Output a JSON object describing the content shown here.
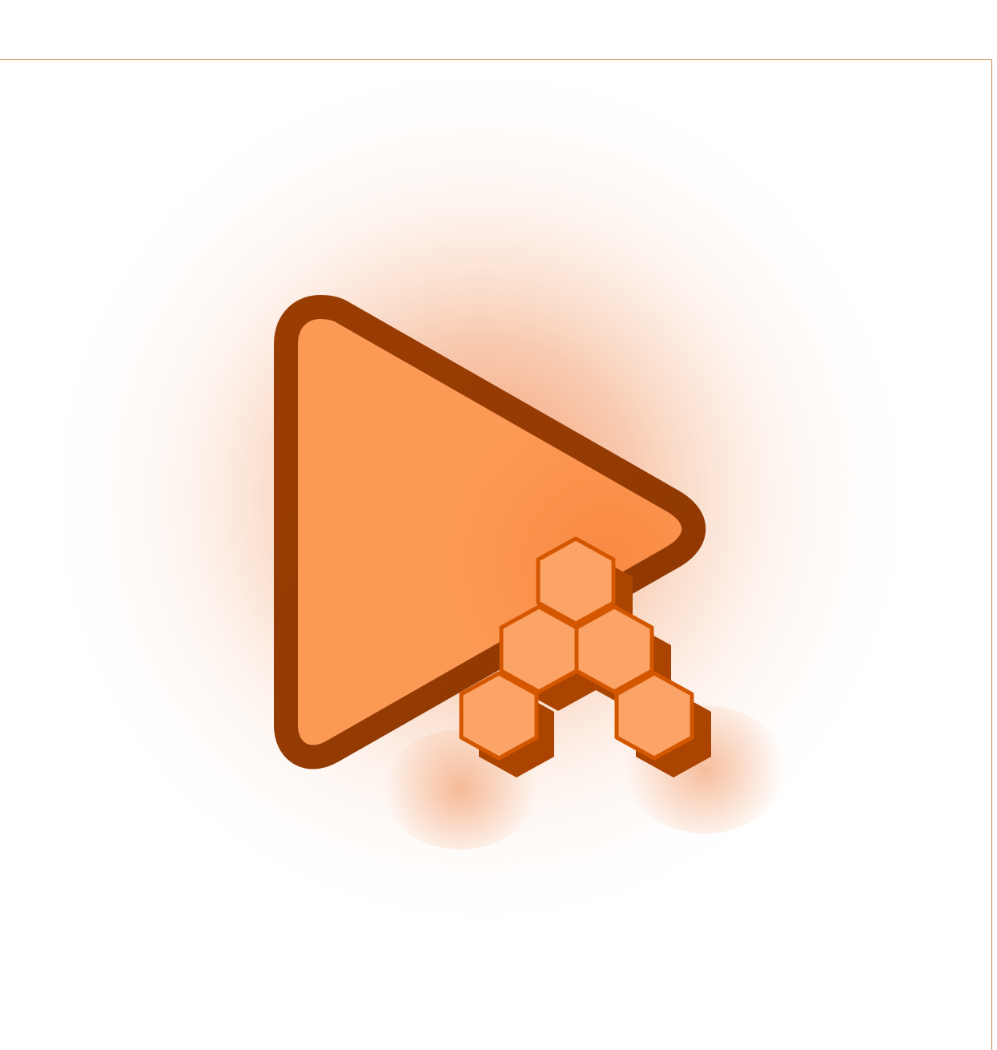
{
  "logo": {
    "icon": "play-triangle-with-honeycomb-icon",
    "colors": {
      "glow": "#f07a3a",
      "triangle_fill": "#fc9954",
      "triangle_stroke": "#9a3d03",
      "hex_fill": "#fca468",
      "hex_stroke": "#d45700",
      "hex_shadow": "#ab4400",
      "frame": "#c98a52",
      "background": "#ffffff"
    }
  }
}
